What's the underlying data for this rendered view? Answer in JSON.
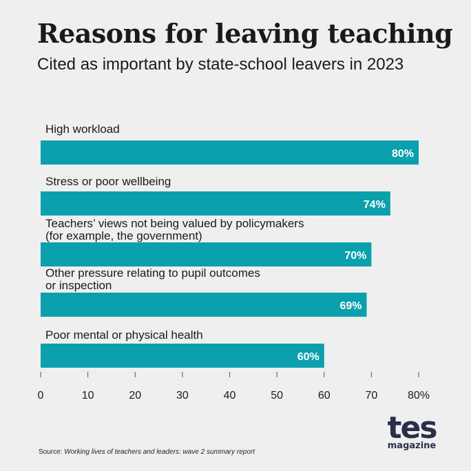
{
  "header": {
    "title": "Reasons for leaving teaching",
    "subtitle": "Cited as important by state-school leavers in 2023"
  },
  "chart_data": {
    "type": "bar",
    "orientation": "horizontal",
    "title": "Reasons for leaving teaching",
    "subtitle": "Cited as important by state-school leavers in 2023",
    "categories": [
      [
        "High workload"
      ],
      [
        "Stress or poor wellbeing"
      ],
      [
        "Teachers’ views not being valued by policymakers",
        "(for example, the government)"
      ],
      [
        "Other pressure relating to pupil outcomes",
        "or inspection"
      ],
      [
        "Poor mental or physical health"
      ]
    ],
    "values": [
      80,
      74,
      70,
      69,
      60
    ],
    "value_labels": [
      "80%",
      "74%",
      "70%",
      "69%",
      "60%"
    ],
    "x_ticks": [
      0,
      10,
      20,
      30,
      40,
      50,
      60,
      70,
      80
    ],
    "x_tick_labels": [
      "0",
      "10",
      "20",
      "30",
      "40",
      "50",
      "60",
      "70",
      "80%"
    ],
    "xlim": [
      0,
      80
    ],
    "grid": false,
    "colors": {
      "bar": "#0ba0ad",
      "value_label": "#ffffff",
      "text": "#1a1a1a",
      "axis": "#555555"
    }
  },
  "footer": {
    "source_label": "Source:",
    "source_text": "Working lives of teachers and leaders: wave 2 summary report"
  },
  "logo": {
    "main": "tes",
    "sub": "magazine"
  }
}
